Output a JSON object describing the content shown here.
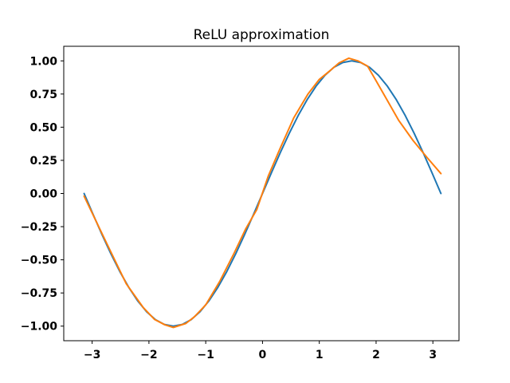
{
  "chart_data": {
    "type": "line",
    "title": "ReLU approximation",
    "xlabel": "",
    "ylabel": "",
    "xlim": [
      -3.5,
      3.46
    ],
    "ylim": [
      -1.11,
      1.11
    ],
    "xticks": [
      -3,
      -2,
      -1,
      0,
      1,
      2,
      3
    ],
    "xtick_labels": [
      "−3",
      "−2",
      "−1",
      "0",
      "1",
      "2",
      "3"
    ],
    "yticks": [
      -1.0,
      -0.75,
      -0.5,
      -0.25,
      0.0,
      0.25,
      0.5,
      0.75,
      1.0
    ],
    "ytick_labels": [
      "−1.00",
      "−0.75",
      "−0.50",
      "−0.25",
      "0.00",
      "0.25",
      "0.50",
      "0.75",
      "1.00"
    ],
    "grid": false,
    "series": [
      {
        "color": "#1f77b4",
        "x": [
          -3.1416,
          -2.9845,
          -2.8274,
          -2.6704,
          -2.5133,
          -2.3562,
          -2.1991,
          -2.042,
          -1.885,
          -1.7279,
          -1.5708,
          -1.4137,
          -1.2566,
          -1.0996,
          -0.9425,
          -0.7854,
          -0.6283,
          -0.4712,
          -0.3142,
          -0.1571,
          0.0,
          0.1571,
          0.3142,
          0.4712,
          0.6283,
          0.7854,
          0.9425,
          1.0996,
          1.2566,
          1.4137,
          1.5708,
          1.7279,
          1.885,
          2.042,
          2.1991,
          2.3562,
          2.5133,
          2.6704,
          2.8274,
          2.9845,
          3.1416
        ],
        "y": [
          0.0,
          -0.1564,
          -0.309,
          -0.454,
          -0.5878,
          -0.7071,
          -0.809,
          -0.891,
          -0.9511,
          -0.9877,
          -1.0,
          -0.9877,
          -0.9511,
          -0.891,
          -0.809,
          -0.7071,
          -0.5878,
          -0.454,
          -0.309,
          -0.1564,
          0.0,
          0.1564,
          0.309,
          0.454,
          0.5878,
          0.7071,
          0.809,
          0.891,
          0.9511,
          0.9877,
          1.0,
          0.9877,
          0.9511,
          0.891,
          0.809,
          0.7071,
          0.5878,
          0.454,
          0.309,
          0.1564,
          0.0
        ]
      },
      {
        "color": "#ff7f0e",
        "x": [
          -3.1416,
          -2.75,
          -2.4,
          -2.1,
          -1.9,
          -1.72,
          -1.57,
          -1.35,
          -1.2,
          -1.0,
          -0.75,
          -0.5,
          -0.3,
          -0.1,
          0.1,
          0.3,
          0.55,
          0.8,
          1.0,
          1.2,
          1.35,
          1.52,
          1.68,
          1.85,
          2.0,
          2.2,
          2.4,
          2.65,
          2.9,
          3.1416
        ],
        "y": [
          -0.02,
          -0.37,
          -0.68,
          -0.86,
          -0.95,
          -0.99,
          -1.01,
          -0.98,
          -0.93,
          -0.84,
          -0.66,
          -0.45,
          -0.27,
          -0.12,
          0.13,
          0.33,
          0.57,
          0.75,
          0.86,
          0.93,
          0.985,
          1.02,
          1.0,
          0.96,
          0.85,
          0.7,
          0.55,
          0.4,
          0.27,
          0.15
        ]
      }
    ]
  }
}
